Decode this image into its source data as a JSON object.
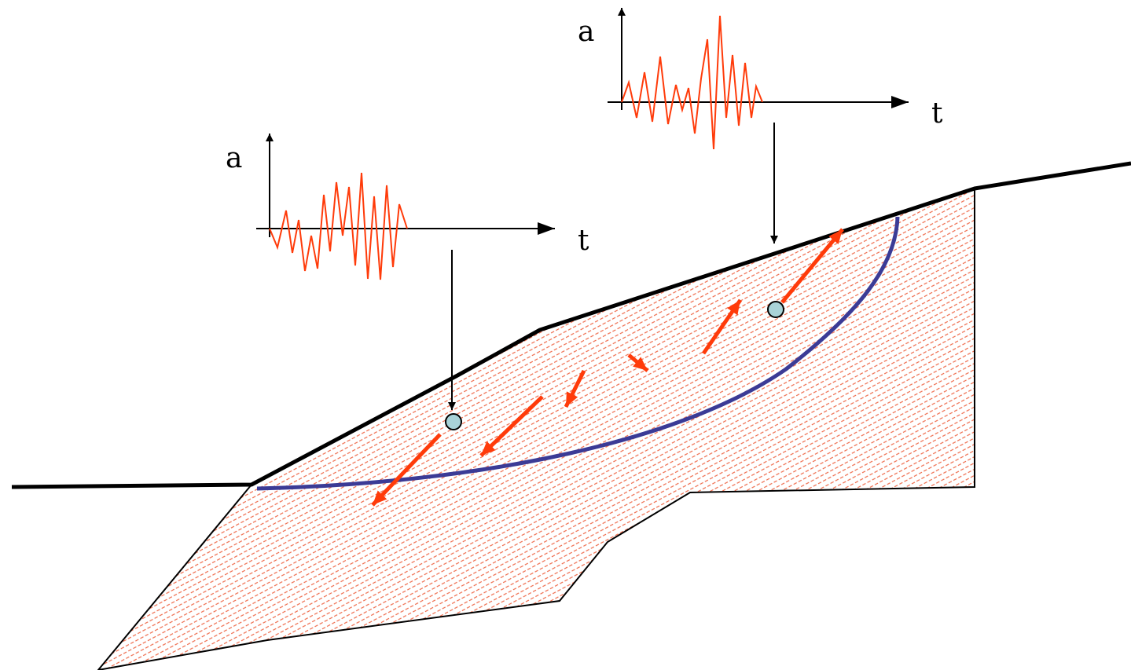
{
  "diagram": {
    "colors": {
      "outline": "#000000",
      "hatch": "#ee6a4a",
      "slip_surface": "#3b3b96",
      "motion_arrow": "#ff3b0a",
      "accel_trace": "#ff3b0a",
      "point_fill": "#a9d3d8"
    },
    "upper_plot": {
      "y_label": "a",
      "x_label": "t"
    },
    "lower_plot": {
      "y_label": "a",
      "x_label": "t"
    }
  }
}
